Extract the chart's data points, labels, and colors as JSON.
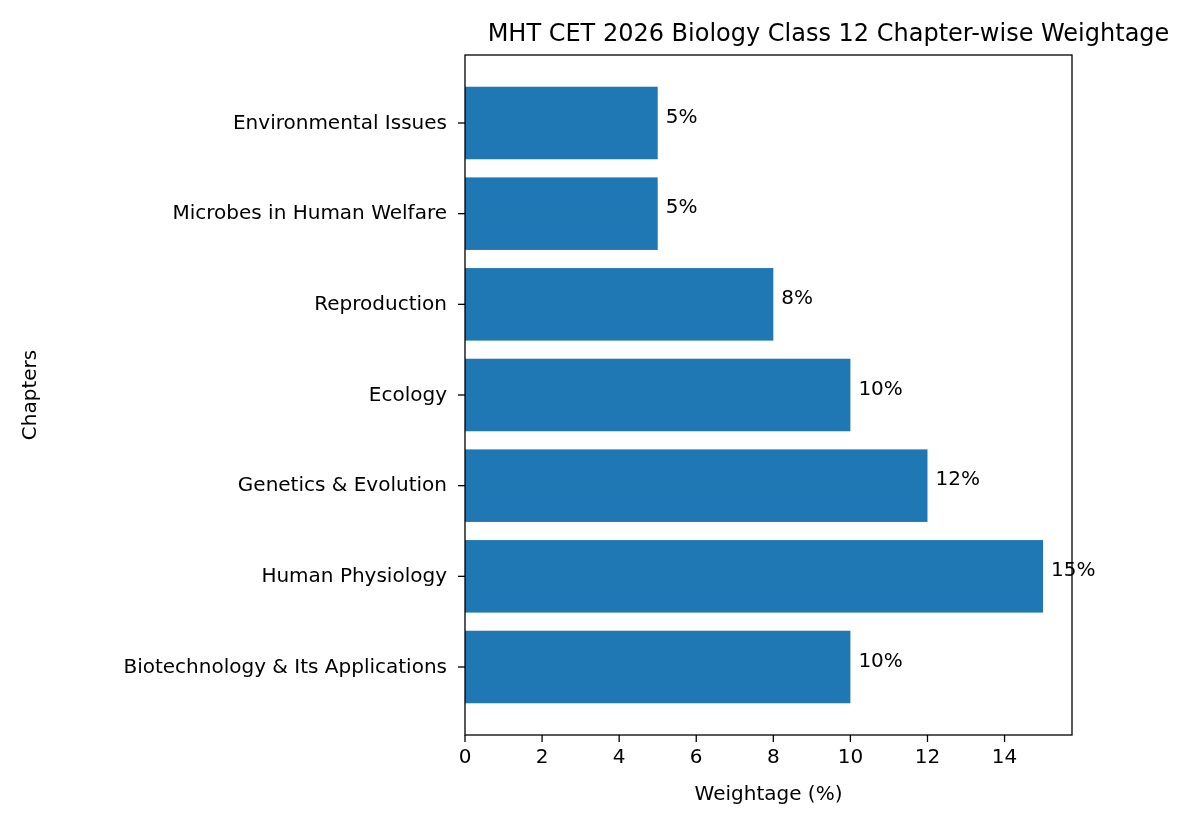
{
  "chart_data": {
    "type": "bar",
    "orientation": "horizontal",
    "title": "MHT CET 2026 Biology Class 12 Chapter-wise Weightage",
    "xlabel": "Weightage (%)",
    "ylabel": "Chapters",
    "categories": [
      "Environmental Issues",
      "Microbes in Human Welfare",
      "Reproduction",
      "Ecology",
      "Genetics & Evolution",
      "Human Physiology",
      "Biotechnology & Its Applications"
    ],
    "values": [
      5,
      5,
      8,
      10,
      12,
      15,
      10
    ],
    "value_labels": [
      "5%",
      "5%",
      "8%",
      "10%",
      "12%",
      "15%",
      "10%"
    ],
    "color": "#1f77b4",
    "xlim": [
      0,
      15.75
    ],
    "xticks": [
      0,
      2,
      4,
      6,
      8,
      10,
      12,
      14
    ],
    "grid": false
  }
}
